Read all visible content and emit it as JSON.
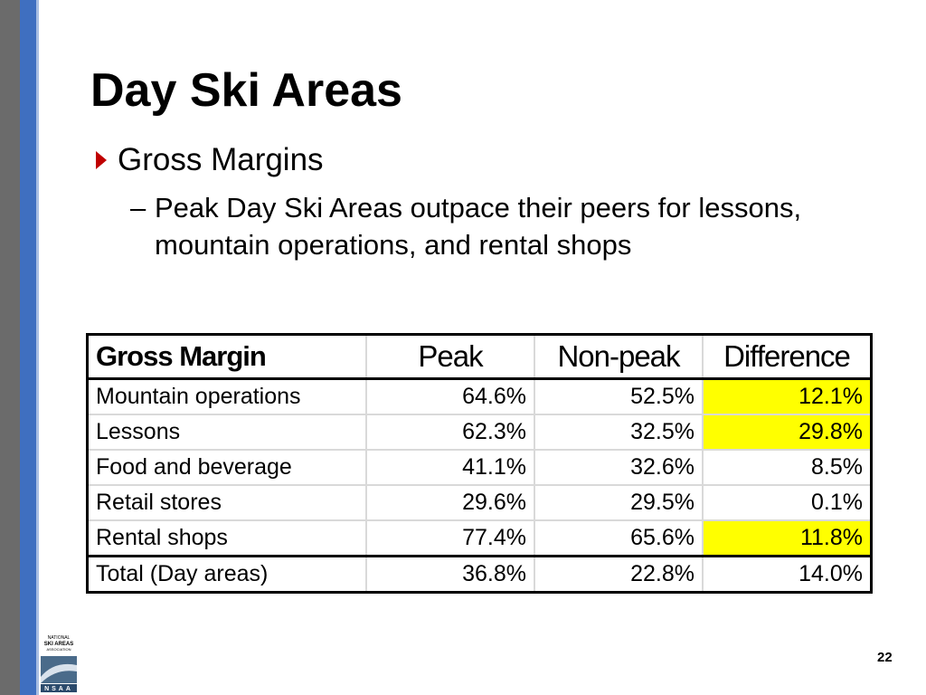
{
  "title": "Day Ski Areas",
  "bullet": "Gross Margins",
  "sub_bullet": "Peak Day Ski Areas outpace their peers for lessons, mountain operations, and rental shops",
  "table": {
    "header": [
      "Gross Margin",
      "Peak",
      "Non-peak",
      "Difference"
    ],
    "highlight_color": "#ffff00",
    "rows": [
      {
        "cells": [
          "Mountain operations",
          "64.6%",
          "52.5%",
          "12.1%"
        ],
        "highlight": true
      },
      {
        "cells": [
          "Lessons",
          "62.3%",
          "32.5%",
          "29.8%"
        ],
        "highlight": true
      },
      {
        "cells": [
          "Food and beverage",
          "41.1%",
          "32.6%",
          "8.5%"
        ],
        "highlight": false
      },
      {
        "cells": [
          "Retail stores",
          "29.6%",
          "29.5%",
          "0.1%"
        ],
        "highlight": false
      },
      {
        "cells": [
          "Rental shops",
          "77.4%",
          "65.6%",
          "11.8%"
        ],
        "highlight": true
      }
    ],
    "total": [
      "Total (Day areas)",
      "36.8%",
      "22.8%",
      "14.0%"
    ]
  },
  "logo": {
    "text": [
      "NATIONAL",
      "SKI AREAS",
      "ASSOCIATION"
    ],
    "acronym": "NSAA"
  },
  "page_number": "22"
}
